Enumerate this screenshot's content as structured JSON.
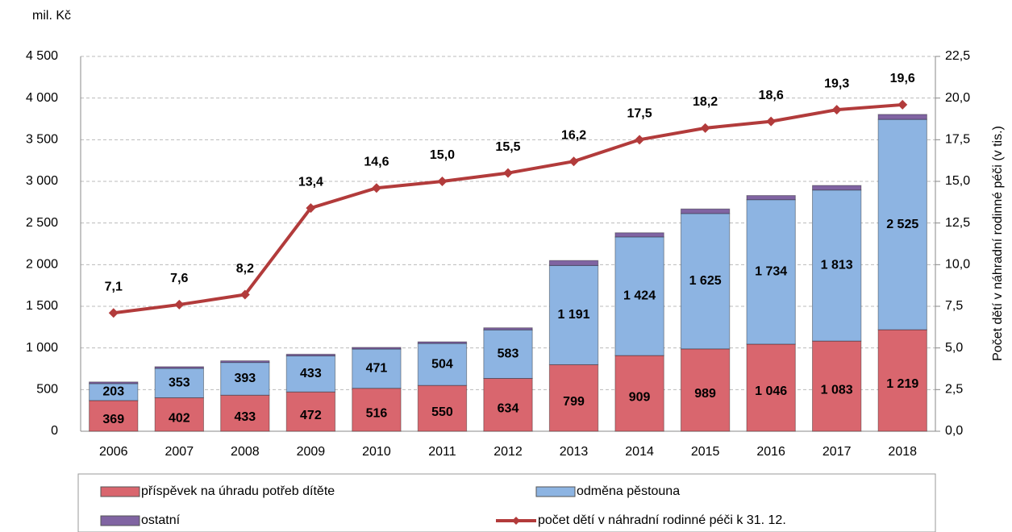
{
  "chart_data": {
    "type": "bar",
    "y_label": "mil. Kč",
    "y2_label": "Počet dětí v náhradní rodinné péči (v tis.)",
    "categories": [
      "2006",
      "2007",
      "2008",
      "2009",
      "2010",
      "2011",
      "2012",
      "2013",
      "2014",
      "2015",
      "2016",
      "2017",
      "2018"
    ],
    "stacked": true,
    "grid": true,
    "legend": "bottom",
    "series": [
      {
        "name": "příspěvek na úhradu potřeb dítěte",
        "color": "#d9666e",
        "values": [
          369,
          402,
          433,
          472,
          516,
          550,
          634,
          799,
          909,
          989,
          1046,
          1083,
          1219
        ],
        "value_labels": [
          "369",
          "402",
          "433",
          "472",
          "516",
          "550",
          "634",
          "799",
          "909",
          "989",
          "1 046",
          "1 083",
          "1 219"
        ]
      },
      {
        "name": "odměna pěstouna",
        "color": "#8db4e2",
        "values": [
          203,
          353,
          393,
          433,
          471,
          504,
          583,
          1191,
          1424,
          1625,
          1734,
          1813,
          2525
        ],
        "value_labels": [
          "203",
          "353",
          "393",
          "433",
          "471",
          "504",
          "583",
          "1 191",
          "1 424",
          "1 625",
          "1 734",
          "1 813",
          "2 525"
        ]
      },
      {
        "name": "ostatní",
        "color": "#8064a2",
        "values": [
          20,
          20,
          20,
          20,
          20,
          20,
          25,
          60,
          50,
          55,
          50,
          55,
          60
        ]
      },
      {
        "name": "počet dětí v náhradní rodinné péči k 31. 12.",
        "type": "line",
        "axis": "y2",
        "color": "#b23b3b",
        "label_color": "#c0504d",
        "values": [
          7.1,
          7.6,
          8.2,
          13.4,
          14.6,
          15.0,
          15.5,
          16.2,
          17.5,
          18.2,
          18.6,
          19.3,
          19.6
        ],
        "value_labels": [
          "7,1",
          "7,6",
          "8,2",
          "13,4",
          "14,6",
          "15,0",
          "15,5",
          "16,2",
          "17,5",
          "18,2",
          "18,6",
          "19,3",
          "19,6"
        ]
      }
    ],
    "ylim": [
      0,
      4500
    ],
    "yticks": [
      0,
      500,
      {
        "value": 1000,
        "label": "1 000"
      },
      {
        "value": 1500,
        "label": "1 500"
      },
      {
        "value": 2000,
        "label": "2 000"
      },
      {
        "value": 2500,
        "label": "2 500"
      },
      {
        "value": 3000,
        "label": "3 000"
      },
      {
        "value": 3500,
        "label": "3 500"
      },
      {
        "value": 4000,
        "label": "4 000"
      },
      {
        "value": 4500,
        "label": "4 500"
      }
    ],
    "y2lim": [
      0,
      22.5
    ],
    "y2ticks": [
      {
        "value": 0,
        "label": "0,0"
      },
      {
        "value": 2.5,
        "label": "2,5"
      },
      {
        "value": 5,
        "label": "5,0"
      },
      {
        "value": 7.5,
        "label": "7,5"
      },
      {
        "value": 10,
        "label": "10,0"
      },
      {
        "value": 12.5,
        "label": "12,5"
      },
      {
        "value": 15,
        "label": "15,0"
      },
      {
        "value": 17.5,
        "label": "17,5"
      },
      {
        "value": 20,
        "label": "20,0"
      },
      {
        "value": 22.5,
        "label": "22,5"
      }
    ]
  }
}
